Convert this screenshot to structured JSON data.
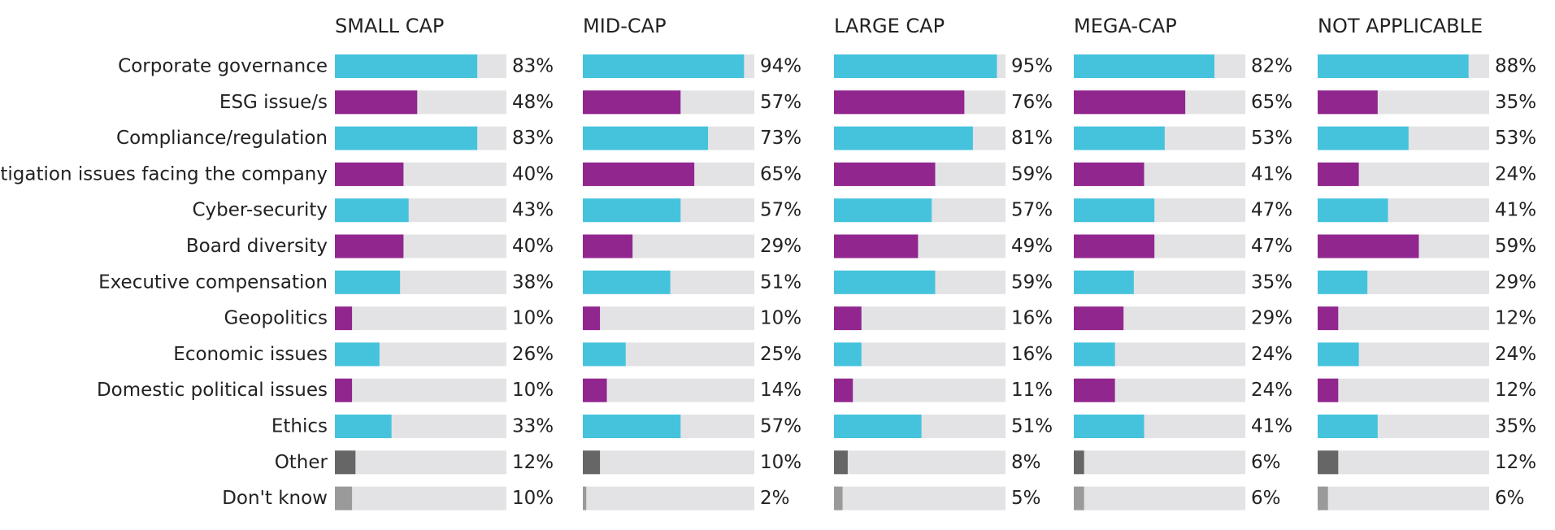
{
  "chart_data": {
    "type": "bar",
    "orientation": "horizontal",
    "xlim": [
      0,
      100
    ],
    "unit_suffix": "%",
    "categories": [
      "Corporate governance",
      "ESG issue/s",
      "Compliance/regulation",
      "Litigation issues facing the company",
      "Cyber-security",
      "Board diversity",
      "Executive compensation",
      "Geopolitics",
      "Economic issues",
      "Domestic political issues",
      "Ethics",
      "Other",
      "Don't know"
    ],
    "category_colors": [
      "#45c3dc",
      "#92268f",
      "#45c3dc",
      "#92268f",
      "#45c3dc",
      "#92268f",
      "#45c3dc",
      "#92268f",
      "#45c3dc",
      "#92268f",
      "#45c3dc",
      "#666666",
      "#9a9a9a"
    ],
    "track_color": "#e3e3e5",
    "panels": [
      {
        "title": "SMALL CAP",
        "values": [
          83,
          48,
          83,
          40,
          43,
          40,
          38,
          10,
          26,
          10,
          33,
          12,
          10
        ]
      },
      {
        "title": "MID-CAP",
        "values": [
          94,
          57,
          73,
          65,
          57,
          29,
          51,
          10,
          25,
          14,
          57,
          10,
          2
        ]
      },
      {
        "title": "LARGE CAP",
        "values": [
          95,
          76,
          81,
          59,
          57,
          49,
          59,
          16,
          16,
          11,
          51,
          8,
          5
        ]
      },
      {
        "title": "MEGA-CAP",
        "values": [
          82,
          65,
          53,
          41,
          47,
          47,
          35,
          29,
          24,
          24,
          41,
          6,
          6
        ]
      },
      {
        "title": "NOT APPLICABLE",
        "values": [
          88,
          35,
          53,
          24,
          41,
          59,
          29,
          12,
          24,
          12,
          35,
          12,
          6
        ]
      }
    ],
    "grid": false,
    "legend": "none"
  }
}
